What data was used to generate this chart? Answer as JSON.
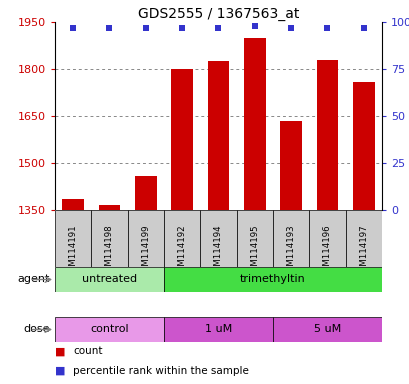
{
  "title": "GDS2555 / 1367563_at",
  "samples": [
    "GSM114191",
    "GSM114198",
    "GSM114199",
    "GSM114192",
    "GSM114194",
    "GSM114195",
    "GSM114193",
    "GSM114196",
    "GSM114197"
  ],
  "counts": [
    1385,
    1365,
    1460,
    1800,
    1825,
    1900,
    1635,
    1830,
    1760
  ],
  "percentile_ranks": [
    97,
    97,
    97,
    97,
    97,
    98,
    97,
    97,
    97
  ],
  "ylim": [
    1350,
    1950
  ],
  "yticks": [
    1350,
    1500,
    1650,
    1800,
    1950
  ],
  "right_yticks": [
    0,
    25,
    50,
    75,
    100
  ],
  "right_ylim": [
    0,
    100
  ],
  "bar_color": "#cc0000",
  "dot_color": "#3333cc",
  "title_color": "#000000",
  "left_axis_color": "#cc0000",
  "right_axis_color": "#3333cc",
  "grid_color": "#888888",
  "agent_groups": [
    {
      "label": "untreated",
      "start": 0,
      "end": 3,
      "color": "#aaeaaa"
    },
    {
      "label": "trimethyltin",
      "start": 3,
      "end": 9,
      "color": "#44dd44"
    }
  ],
  "dose_groups": [
    {
      "label": "control",
      "start": 0,
      "end": 3,
      "color": "#e899e8"
    },
    {
      "label": "1 uM",
      "start": 3,
      "end": 6,
      "color": "#cc55cc"
    },
    {
      "label": "5 uM",
      "start": 6,
      "end": 9,
      "color": "#cc55cc"
    }
  ],
  "legend_count_color": "#cc0000",
  "legend_percentile_color": "#3333cc",
  "sample_box_color": "#cccccc",
  "background_color": "#ffffff"
}
